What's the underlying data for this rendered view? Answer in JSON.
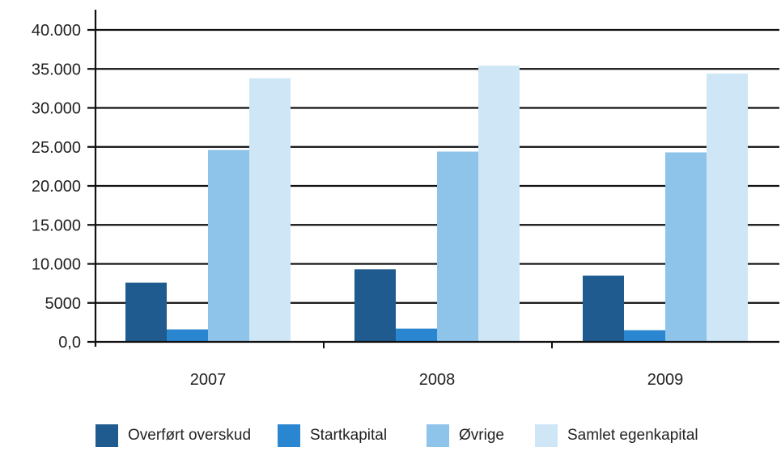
{
  "chart_data": {
    "type": "bar",
    "title": "",
    "xlabel": "",
    "ylabel": "",
    "categories": [
      "2007",
      "2008",
      "2009"
    ],
    "ylim": [
      0,
      40000
    ],
    "yticks": [
      {
        "value": 0,
        "label": "0,0"
      },
      {
        "value": 5000,
        "label": "5000"
      },
      {
        "value": 10000,
        "label": "10.000"
      },
      {
        "value": 15000,
        "label": "15.000"
      },
      {
        "value": 20000,
        "label": "20.000"
      },
      {
        "value": 25000,
        "label": "25.000"
      },
      {
        "value": 30000,
        "label": "30.000"
      },
      {
        "value": 35000,
        "label": "35.000"
      },
      {
        "value": 40000,
        "label": "40.000"
      }
    ],
    "grid": true,
    "legend_position": "bottom",
    "series": [
      {
        "name": "Overført overskud",
        "color": "#1f5b8e",
        "values": [
          7600,
          9300,
          8500
        ]
      },
      {
        "name": "Startkapital",
        "color": "#2a86d0",
        "values": [
          1600,
          1700,
          1500
        ]
      },
      {
        "name": "Øvrige",
        "color": "#8ec3ea",
        "values": [
          24600,
          24400,
          24300
        ]
      },
      {
        "name": "Samlet egenkapital",
        "color": "#cfe6f6",
        "values": [
          33800,
          35400,
          34400
        ]
      }
    ]
  }
}
